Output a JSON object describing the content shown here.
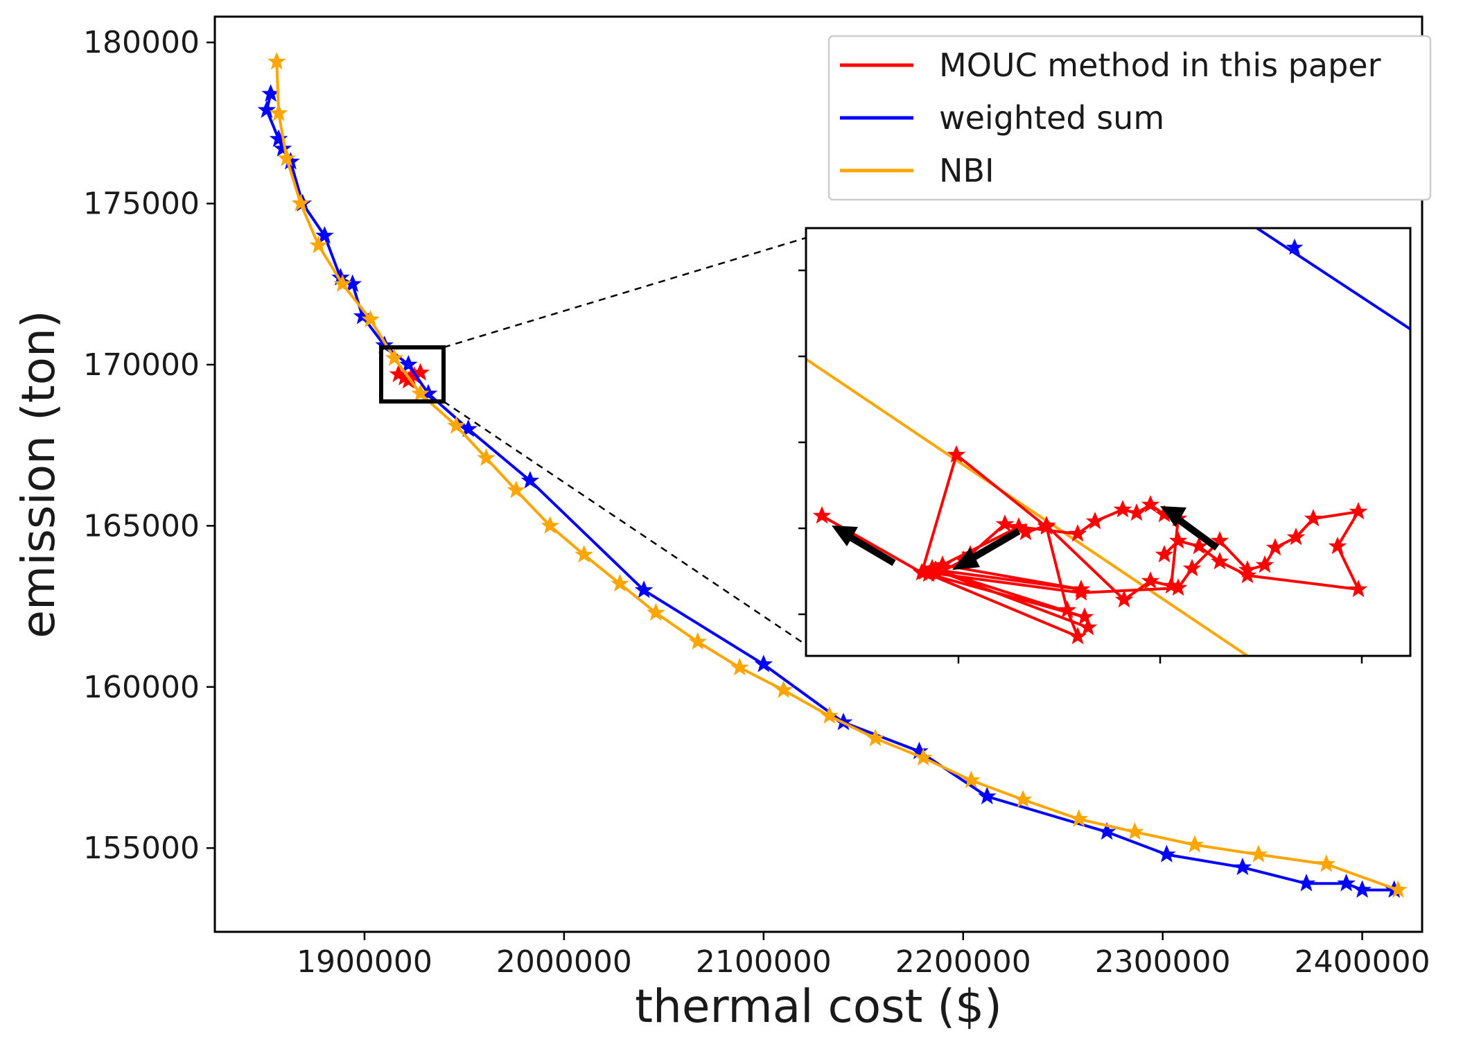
{
  "chart_data": {
    "type": "line",
    "title": "",
    "xlabel": "thermal cost ($)",
    "ylabel": "emission (ton)",
    "xlim": [
      1825000,
      2430000
    ],
    "ylim": [
      152400,
      180800
    ],
    "x_ticks": [
      1900000,
      2000000,
      2100000,
      2200000,
      2300000,
      2400000
    ],
    "y_ticks": [
      155000,
      160000,
      165000,
      170000,
      175000,
      180000
    ],
    "legend_position": "top-right",
    "grid": false,
    "series": [
      {
        "name": "MOUC method in this paper",
        "color": "#ff0000",
        "marker": "star",
        "points": [
          [
            1917000,
            169700
          ],
          [
            1920000,
            169600
          ],
          [
            1923000,
            169550
          ],
          [
            1925000,
            169650
          ],
          [
            1928000,
            169750
          ],
          [
            1922000,
            169500
          ]
        ]
      },
      {
        "name": "weighted sum",
        "color": "#0000ff",
        "marker": "star",
        "points": [
          [
            1853000,
            178400
          ],
          [
            1851000,
            177900
          ],
          [
            1857000,
            177000
          ],
          [
            1859000,
            176700
          ],
          [
            1863000,
            176300
          ],
          [
            1869000,
            175000
          ],
          [
            1880000,
            174000
          ],
          [
            1888000,
            172700
          ],
          [
            1894000,
            172500
          ],
          [
            1899000,
            171500
          ],
          [
            1910000,
            170600
          ],
          [
            1922000,
            170000
          ],
          [
            1932000,
            169100
          ],
          [
            1952000,
            168000
          ],
          [
            1983000,
            166400
          ],
          [
            2040000,
            163000
          ],
          [
            2100000,
            160700
          ],
          [
            2140000,
            158900
          ],
          [
            2178000,
            158000
          ],
          [
            2212000,
            156600
          ],
          [
            2272000,
            155500
          ],
          [
            2302000,
            154800
          ],
          [
            2340000,
            154400
          ],
          [
            2372000,
            153900
          ],
          [
            2392000,
            153900
          ],
          [
            2400000,
            153700
          ],
          [
            2416000,
            153700
          ]
        ]
      },
      {
        "name": "NBI",
        "color": "#ffa500",
        "marker": "star",
        "points": [
          [
            1856000,
            179400
          ],
          [
            1857000,
            177800
          ],
          [
            1861000,
            176400
          ],
          [
            1868000,
            175000
          ],
          [
            1877000,
            173700
          ],
          [
            1889000,
            172500
          ],
          [
            1903000,
            171400
          ],
          [
            1915000,
            170200
          ],
          [
            1928000,
            169100
          ],
          [
            1946000,
            168100
          ],
          [
            1961000,
            167100
          ],
          [
            1976000,
            166100
          ],
          [
            1993000,
            165000
          ],
          [
            2010000,
            164100
          ],
          [
            2028000,
            163200
          ],
          [
            2046000,
            162300
          ],
          [
            2067000,
            161400
          ],
          [
            2088000,
            160600
          ],
          [
            2110000,
            159900
          ],
          [
            2133000,
            159100
          ],
          [
            2156000,
            158400
          ],
          [
            2180000,
            157800
          ],
          [
            2204000,
            157100
          ],
          [
            2230000,
            156500
          ],
          [
            2258000,
            155900
          ],
          [
            2286000,
            155500
          ],
          [
            2316000,
            155100
          ],
          [
            2348000,
            154800
          ],
          [
            2382000,
            154500
          ],
          [
            2418000,
            153700
          ]
        ]
      }
    ],
    "inset": {
      "zoom_box": {
        "x": [
          1915000,
          1932000
        ],
        "y": [
          168900,
          170600
        ]
      },
      "xlim": [
        1912000,
        1942000
      ],
      "ylim": [
        168000,
        173000
      ],
      "annotations": "arrows"
    }
  }
}
